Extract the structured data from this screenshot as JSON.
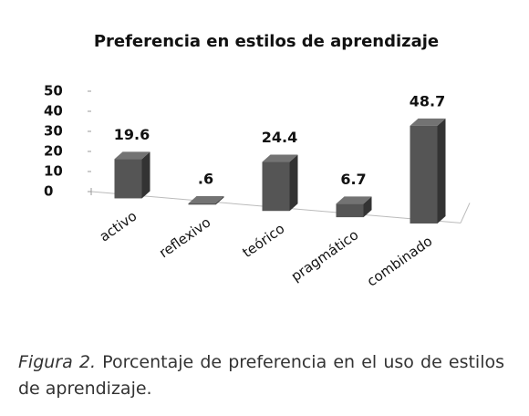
{
  "chart_data": {
    "type": "bar3d",
    "title": "Preferencia en estilos de aprendizaje",
    "categories": [
      "activo",
      "reflexivo",
      "teórico",
      "pragmático",
      "combinado"
    ],
    "values": [
      19.6,
      0.6,
      24.4,
      6.7,
      48.7
    ],
    "value_labels": [
      "19.6",
      ".6",
      "24.4",
      "6.7",
      "48.7"
    ],
    "color": "#555555",
    "ylim": [
      0,
      50
    ],
    "yticks": [
      0,
      10,
      20,
      30,
      40,
      50
    ],
    "grid": false
  },
  "caption": {
    "label": "Figura 2.",
    "text": "Porcentaje de preferencia en el uso de estilos de aprendizaje."
  }
}
